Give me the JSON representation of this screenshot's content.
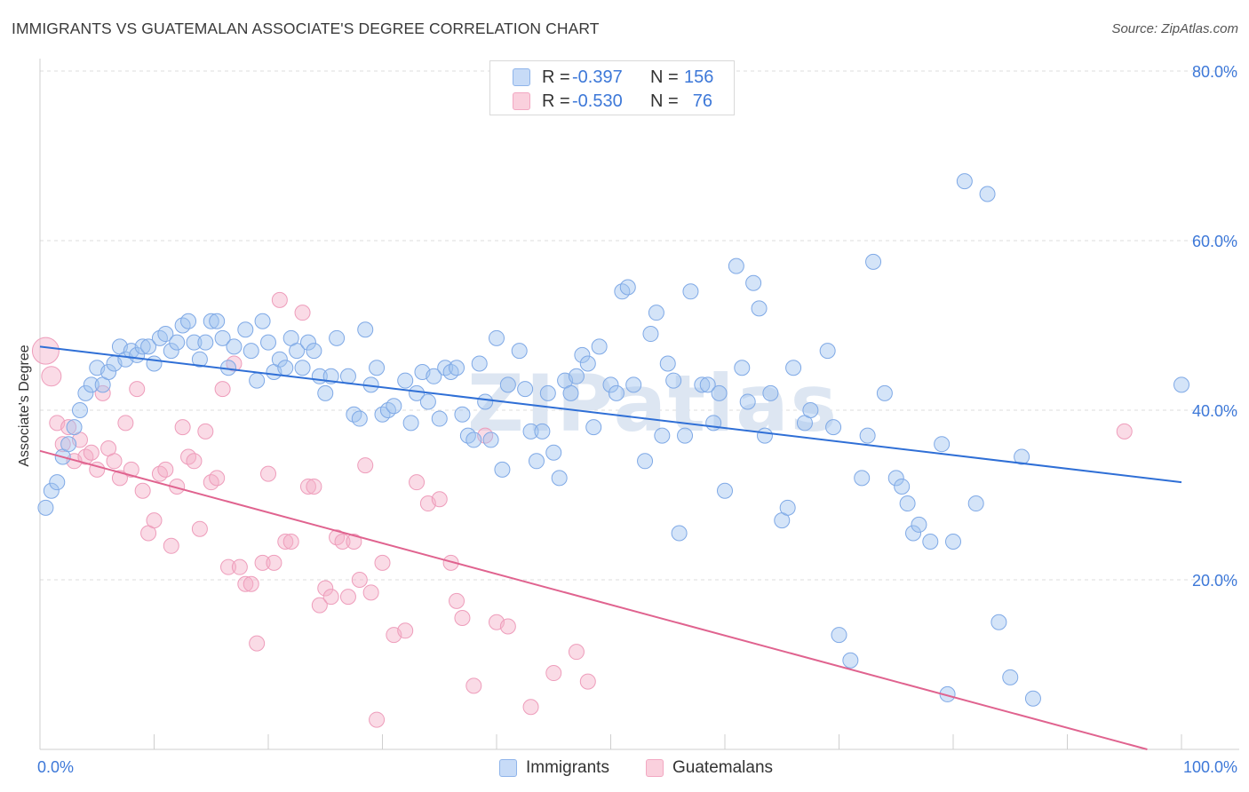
{
  "chart_data": {
    "type": "scatter",
    "title": "IMMIGRANTS VS GUATEMALAN ASSOCIATE'S DEGREE CORRELATION CHART",
    "source": "Source: ZipAtlas.com",
    "xlabel": "",
    "ylabel": "Associate's Degree",
    "xlim": [
      0,
      100
    ],
    "ylim": [
      0,
      80
    ],
    "x_tick_labels": [
      "0.0%",
      "100.0%"
    ],
    "y_tick_labels": [
      "80.0%",
      "60.0%",
      "40.0%",
      "20.0%"
    ],
    "y_ticks": [
      80,
      60,
      40,
      20
    ],
    "grid": true,
    "legend_position": "top-center",
    "watermark": "ZIPatlas",
    "series": [
      {
        "name": "Immigrants",
        "color": "#8fb4ea",
        "line_color": "#2f6fd6",
        "R": "-0.397",
        "N": "156",
        "trend": [
          [
            0,
            47.5
          ],
          [
            100,
            31.5
          ]
        ],
        "points": [
          [
            0.5,
            28.5
          ],
          [
            1,
            30.5
          ],
          [
            1.5,
            31.5
          ],
          [
            2,
            34.5
          ],
          [
            2.5,
            36
          ],
          [
            3,
            38
          ],
          [
            3.5,
            40
          ],
          [
            4,
            42
          ],
          [
            4.5,
            43
          ],
          [
            5,
            45
          ],
          [
            5.5,
            43
          ],
          [
            6,
            44.5
          ],
          [
            6.5,
            45.5
          ],
          [
            7,
            47.5
          ],
          [
            7.5,
            46
          ],
          [
            8,
            47
          ],
          [
            8.5,
            46.5
          ],
          [
            9,
            47.5
          ],
          [
            9.5,
            47.5
          ],
          [
            10,
            45.5
          ],
          [
            10.5,
            48.5
          ],
          [
            11,
            49
          ],
          [
            11.5,
            47
          ],
          [
            12,
            48
          ],
          [
            12.5,
            50
          ],
          [
            13,
            50.5
          ],
          [
            13.5,
            48
          ],
          [
            14,
            46
          ],
          [
            14.5,
            48
          ],
          [
            15,
            50.5
          ],
          [
            15.5,
            50.5
          ],
          [
            16,
            48.5
          ],
          [
            16.5,
            45
          ],
          [
            17,
            47.5
          ],
          [
            18,
            49.5
          ],
          [
            18.5,
            47
          ],
          [
            19,
            43.5
          ],
          [
            19.5,
            50.5
          ],
          [
            20,
            48
          ],
          [
            20.5,
            44.5
          ],
          [
            21,
            46
          ],
          [
            21.5,
            45
          ],
          [
            22,
            48.5
          ],
          [
            22.5,
            47
          ],
          [
            23,
            45
          ],
          [
            23.5,
            48
          ],
          [
            24,
            47
          ],
          [
            24.5,
            44
          ],
          [
            25,
            42
          ],
          [
            25.5,
            44
          ],
          [
            26,
            48.5
          ],
          [
            27,
            44
          ],
          [
            27.5,
            39.5
          ],
          [
            28,
            39
          ],
          [
            28.5,
            49.5
          ],
          [
            29,
            43
          ],
          [
            29.5,
            45
          ],
          [
            30,
            39.5
          ],
          [
            30.5,
            40
          ],
          [
            31,
            40.5
          ],
          [
            32,
            43.5
          ],
          [
            32.5,
            38.5
          ],
          [
            33,
            42
          ],
          [
            33.5,
            44.5
          ],
          [
            34,
            41
          ],
          [
            34.5,
            44
          ],
          [
            35,
            39
          ],
          [
            35.5,
            45
          ],
          [
            36,
            44.5
          ],
          [
            36.5,
            45
          ],
          [
            37,
            39.5
          ],
          [
            37.5,
            37
          ],
          [
            38,
            36.5
          ],
          [
            38.5,
            45.5
          ],
          [
            39,
            41
          ],
          [
            39.5,
            36.5
          ],
          [
            40,
            48.5
          ],
          [
            40.5,
            33
          ],
          [
            41,
            43
          ],
          [
            42,
            47
          ],
          [
            42.5,
            42.5
          ],
          [
            43,
            37.5
          ],
          [
            43.5,
            34
          ],
          [
            44,
            37.5
          ],
          [
            44.5,
            42
          ],
          [
            45,
            35
          ],
          [
            45.5,
            32
          ],
          [
            46,
            43.5
          ],
          [
            46.5,
            42
          ],
          [
            47,
            44
          ],
          [
            47.5,
            46.5
          ],
          [
            48,
            45.5
          ],
          [
            48.5,
            38
          ],
          [
            49,
            47.5
          ],
          [
            50,
            43
          ],
          [
            50.5,
            42
          ],
          [
            51,
            54
          ],
          [
            51.5,
            54.5
          ],
          [
            52,
            43
          ],
          [
            53,
            34
          ],
          [
            53.5,
            49
          ],
          [
            54,
            51.5
          ],
          [
            54.5,
            37
          ],
          [
            55,
            45.5
          ],
          [
            55.5,
            43.5
          ],
          [
            56,
            25.5
          ],
          [
            56.5,
            37
          ],
          [
            57,
            54
          ],
          [
            58,
            43
          ],
          [
            58.5,
            43
          ],
          [
            59,
            38.5
          ],
          [
            59.5,
            42
          ],
          [
            60,
            30.5
          ],
          [
            61,
            57
          ],
          [
            61.5,
            45
          ],
          [
            62,
            41
          ],
          [
            62.5,
            55
          ],
          [
            63,
            52
          ],
          [
            63.5,
            37
          ],
          [
            64,
            42
          ],
          [
            65,
            27
          ],
          [
            65.5,
            28.5
          ],
          [
            66,
            45
          ],
          [
            67,
            38.5
          ],
          [
            67.5,
            40
          ],
          [
            69,
            47
          ],
          [
            69.5,
            38
          ],
          [
            70,
            13.5
          ],
          [
            71,
            10.5
          ],
          [
            72,
            32
          ],
          [
            72.5,
            37
          ],
          [
            73,
            57.5
          ],
          [
            74,
            42
          ],
          [
            75,
            32
          ],
          [
            75.5,
            31
          ],
          [
            76,
            29
          ],
          [
            76.5,
            25.5
          ],
          [
            77,
            26.5
          ],
          [
            78,
            24.5
          ],
          [
            79,
            36
          ],
          [
            79.5,
            6.5
          ],
          [
            80,
            24.5
          ],
          [
            81,
            67
          ],
          [
            82,
            29
          ],
          [
            83,
            65.5
          ],
          [
            84,
            15
          ],
          [
            85,
            8.5
          ],
          [
            86,
            34.5
          ],
          [
            87,
            6
          ],
          [
            100,
            43
          ]
        ]
      },
      {
        "name": "Guatemalans",
        "color": "#f2a8c2",
        "line_color": "#e0638f",
        "R": "-0.530",
        "N": "76",
        "trend": [
          [
            0,
            35.2
          ],
          [
            97,
            0
          ]
        ],
        "points": [
          [
            0.5,
            47
          ],
          [
            1,
            44
          ],
          [
            1.5,
            38.5
          ],
          [
            2,
            36
          ],
          [
            2.5,
            38
          ],
          [
            3,
            34
          ],
          [
            3.5,
            36.5
          ],
          [
            4,
            34.5
          ],
          [
            4.5,
            35
          ],
          [
            5,
            33
          ],
          [
            5.5,
            42
          ],
          [
            6,
            35.5
          ],
          [
            6.5,
            34
          ],
          [
            7,
            32
          ],
          [
            7.5,
            38.5
          ],
          [
            8,
            33
          ],
          [
            8.5,
            42.5
          ],
          [
            9,
            30.5
          ],
          [
            9.5,
            25.5
          ],
          [
            10,
            27
          ],
          [
            10.5,
            32.5
          ],
          [
            11,
            33
          ],
          [
            11.5,
            24
          ],
          [
            12,
            31
          ],
          [
            12.5,
            38
          ],
          [
            13,
            34.5
          ],
          [
            13.5,
            34
          ],
          [
            14,
            26
          ],
          [
            14.5,
            37.5
          ],
          [
            15,
            31.5
          ],
          [
            15.5,
            32
          ],
          [
            16,
            42.5
          ],
          [
            16.5,
            21.5
          ],
          [
            17,
            45.5
          ],
          [
            17.5,
            21.5
          ],
          [
            18,
            19.5
          ],
          [
            18.5,
            19.5
          ],
          [
            19,
            12.5
          ],
          [
            19.5,
            22
          ],
          [
            20,
            32.5
          ],
          [
            20.5,
            22
          ],
          [
            21,
            53
          ],
          [
            21.5,
            24.5
          ],
          [
            22,
            24.5
          ],
          [
            23,
            51.5
          ],
          [
            23.5,
            31
          ],
          [
            24,
            31
          ],
          [
            24.5,
            17
          ],
          [
            25,
            19
          ],
          [
            25.5,
            18
          ],
          [
            26,
            25
          ],
          [
            26.5,
            24.5
          ],
          [
            27,
            18
          ],
          [
            27.5,
            24.5
          ],
          [
            28,
            20
          ],
          [
            28.5,
            33.5
          ],
          [
            29,
            18.5
          ],
          [
            29.5,
            3.5
          ],
          [
            30,
            22
          ],
          [
            31,
            13.5
          ],
          [
            32,
            14
          ],
          [
            33,
            31.5
          ],
          [
            34,
            29
          ],
          [
            35,
            29.5
          ],
          [
            36,
            22
          ],
          [
            36.5,
            17.5
          ],
          [
            37,
            15.5
          ],
          [
            38,
            7.5
          ],
          [
            39,
            37
          ],
          [
            40,
            15
          ],
          [
            41,
            14.5
          ],
          [
            43,
            5
          ],
          [
            45,
            9
          ],
          [
            47,
            11.5
          ],
          [
            48,
            8
          ],
          [
            95,
            37.5
          ]
        ]
      }
    ]
  }
}
